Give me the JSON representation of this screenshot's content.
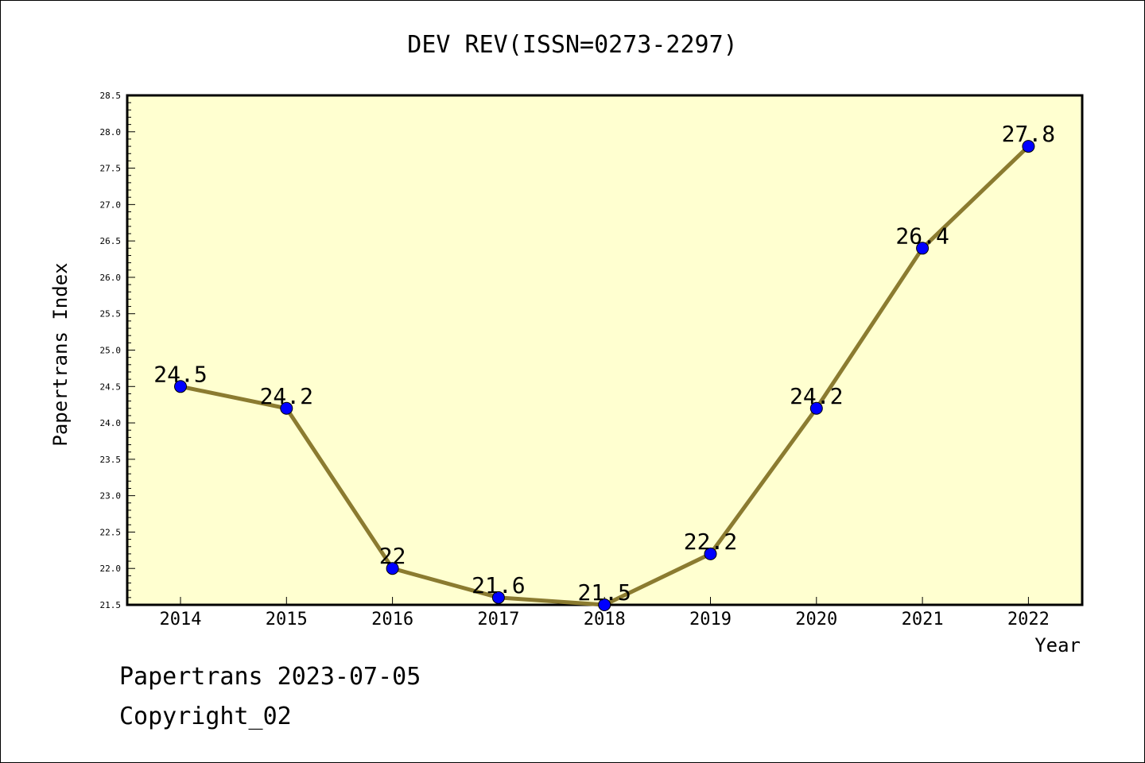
{
  "chart_data": {
    "type": "line",
    "title": "DEV REV(ISSN=0273-2297)",
    "xlabel": "Year",
    "ylabel": "Papertrans Index",
    "categories": [
      "2014",
      "2015",
      "2016",
      "2017",
      "2018",
      "2019",
      "2020",
      "2021",
      "2022"
    ],
    "values": [
      24.5,
      24.2,
      22,
      21.6,
      21.5,
      22.2,
      24.2,
      26.4,
      27.8
    ],
    "data_labels": [
      "24.5",
      "24.2",
      "22",
      "21.6",
      "21.5",
      "22.2",
      "24.2",
      "26.4",
      "27.8"
    ],
    "ylim": [
      21.5,
      28.5
    ],
    "y_ticks": [
      "21.5",
      "22.0",
      "22.5",
      "23.0",
      "23.5",
      "24.0",
      "24.5",
      "25.0",
      "25.5",
      "26.0",
      "26.5",
      "27.0",
      "27.5",
      "28.0",
      "28.5"
    ],
    "grid": false,
    "colors": {
      "plot_background": "#ffffd0",
      "line": "#8b7b30",
      "marker": "#0000ff"
    }
  },
  "footer": {
    "line1": "Papertrans 2023-07-05",
    "line2": "Copyright_02"
  }
}
